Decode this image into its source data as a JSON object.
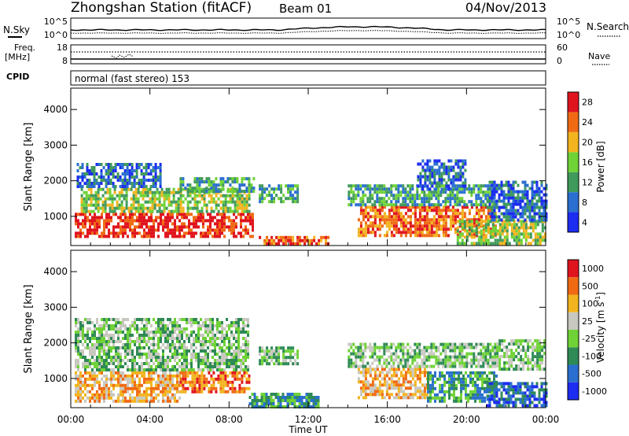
{
  "header": {
    "title": "Zhongshan Station (fitACF)",
    "beam": "Beam 01",
    "date": "04/Nov/2013"
  },
  "summary_panels": {
    "nsky_label": "N.Sky",
    "nsearch_label": "N.Search",
    "noise_ticks_left": [
      "10^5",
      "10^0"
    ],
    "noise_ticks_right": [
      "10^5",
      "10^0"
    ],
    "freq_label_line1": "Freq.",
    "freq_label_line2": "[MHz]",
    "freq_ticks": [
      "18",
      "8"
    ],
    "nave_label": "Nave",
    "nave_ticks": [
      "60",
      "0"
    ],
    "cpid_label": "CPID",
    "cpid_text": "normal (fast stereo) 153"
  },
  "chart_data": [
    {
      "type": "heatmap",
      "quantity": "power",
      "ylabel": "Slant Range [km]",
      "y_ticks": [
        "1000",
        "2000",
        "3000",
        "4000"
      ],
      "y_tick_values": [
        1000,
        2000,
        3000,
        4000
      ],
      "ylim": [
        180,
        4600
      ],
      "xlim_hours": [
        0,
        24
      ],
      "colorbar": {
        "label": "Power [dB]",
        "tick_labels": [
          "4",
          "8",
          "12",
          "16",
          "20",
          "24",
          "28"
        ],
        "colors": [
          "#1c2cf0",
          "#2a6fcf",
          "#3f9a5b",
          "#6fd236",
          "#f2b41e",
          "#f06a14",
          "#e0141e"
        ]
      },
      "echo_regions": [
        {
          "t0": 0.2,
          "t1": 9.2,
          "r0": 400,
          "r1": 1100,
          "level": 6
        },
        {
          "t0": 0.5,
          "t1": 9.0,
          "r0": 1100,
          "r1": 1800,
          "level": 3
        },
        {
          "t0": 0.3,
          "t1": 4.5,
          "r0": 1800,
          "r1": 2500,
          "level": 1
        },
        {
          "t0": 5.5,
          "t1": 9.2,
          "r0": 1700,
          "r1": 2100,
          "level": 2
        },
        {
          "t0": 9.5,
          "t1": 11.5,
          "r0": 1400,
          "r1": 1900,
          "level": 2
        },
        {
          "t0": 9.5,
          "t1": 13.0,
          "r0": 200,
          "r1": 450,
          "level": 5
        },
        {
          "t0": 14.5,
          "t1": 21.5,
          "r0": 500,
          "r1": 1300,
          "level": 5
        },
        {
          "t0": 14.0,
          "t1": 21.5,
          "r0": 1300,
          "r1": 1900,
          "level": 2
        },
        {
          "t0": 19.5,
          "t1": 24.0,
          "r0": 250,
          "r1": 900,
          "level": 3
        },
        {
          "t0": 21.0,
          "t1": 24.0,
          "r0": 900,
          "r1": 2000,
          "level": 1
        },
        {
          "t0": 17.5,
          "t1": 20.0,
          "r0": 1800,
          "r1": 2600,
          "level": 1
        }
      ]
    },
    {
      "type": "heatmap",
      "quantity": "velocity",
      "ylabel": "Slant Range [km]",
      "y_ticks": [
        "1000",
        "2000",
        "3000",
        "4000"
      ],
      "y_tick_values": [
        1000,
        2000,
        3000,
        4000
      ],
      "ylim": [
        180,
        4600
      ],
      "xlabel": "Time UT",
      "x_ticks": [
        "00:00",
        "04:00",
        "08:00",
        "12:00",
        "16:00",
        "20:00",
        "00:00"
      ],
      "x_tick_hours": [
        0,
        4,
        8,
        12,
        16,
        20,
        24
      ],
      "xlim_hours": [
        0,
        24
      ],
      "colorbar": {
        "label": "Velocity [m s",
        "label_exponent": "-1",
        "label_close": "]",
        "tick_labels": [
          "1000",
          "500",
          "100",
          "25",
          "-25",
          "-100",
          "-500",
          "-1000"
        ],
        "colors": [
          "#1c2cf0",
          "#2a6fcf",
          "#2f8a56",
          "#6fd236",
          "#c8c8c0",
          "#f2b41e",
          "#f06a14",
          "#e0141e"
        ]
      },
      "echo_regions": [
        {
          "t0": 0.2,
          "t1": 5.5,
          "r0": 400,
          "r1": 1200,
          "level": 5
        },
        {
          "t0": 0.2,
          "t1": 9.0,
          "r0": 1200,
          "r1": 2700,
          "level": 3
        },
        {
          "t0": 5.5,
          "t1": 9.0,
          "r0": 600,
          "r1": 1200,
          "level": 6
        },
        {
          "t0": 9.0,
          "t1": 12.5,
          "r0": 200,
          "r1": 600,
          "level": 2
        },
        {
          "t0": 9.5,
          "t1": 11.5,
          "r0": 1400,
          "r1": 1900,
          "level": 3
        },
        {
          "t0": 14.5,
          "t1": 18.0,
          "r0": 500,
          "r1": 1300,
          "level": 5
        },
        {
          "t0": 14.0,
          "t1": 21.5,
          "r0": 1300,
          "r1": 2000,
          "level": 3
        },
        {
          "t0": 18.0,
          "t1": 21.5,
          "r0": 400,
          "r1": 1200,
          "level": 2
        },
        {
          "t0": 21.0,
          "t1": 24.0,
          "r0": 200,
          "r1": 900,
          "level": 1
        },
        {
          "t0": 21.5,
          "t1": 24.0,
          "r0": 1300,
          "r1": 2100,
          "level": 3
        }
      ]
    }
  ]
}
